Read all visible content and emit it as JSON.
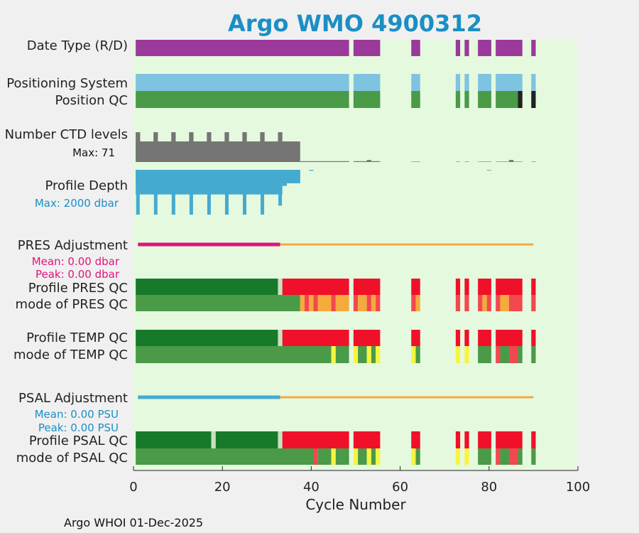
{
  "title": "Argo WMO 4900312",
  "footer": "Argo WHOI 01-Dec-2025",
  "colors": {
    "title": "#1a8fc4",
    "plot_bg": "#e5f9df",
    "purple": "#9b3a9b",
    "lightblue": "#7ec4e0",
    "green": "#4a9a48",
    "darkgreen": "#167a2a",
    "red": "#f0102a",
    "orange": "#f5aa3c",
    "lightred": "#f24850",
    "yellow": "#f5f542",
    "black": "#222222",
    "gray": "#757575",
    "profile_blue": "#45aad0",
    "magenta": "#e0147a",
    "pale": "#c8e0c0"
  },
  "chart_data": {
    "type": "heatmap",
    "title": "Argo WMO 4900312",
    "xlabel": "Cycle Number",
    "xlim": [
      0,
      100
    ],
    "xticks": [
      0,
      20,
      40,
      60,
      80,
      100
    ],
    "row_labels": {
      "date_type": "Date Type (R/D)",
      "positioning_system": "Positioning System",
      "position_qc": "Position QC",
      "number_ctd_levels": "Number CTD levels",
      "profile_depth": "Profile Depth",
      "pres_adjustment": "PRES Adjustment",
      "profile_pres_qc": "Profile PRES QC",
      "mode_pres_qc": "mode of PRES QC",
      "profile_temp_qc": "Profile TEMP QC",
      "mode_temp_qc": "mode of TEMP QC",
      "psal_adjustment": "PSAL Adjustment",
      "profile_psal_qc": "Profile PSAL QC",
      "mode_psal_qc": "mode of PSAL QC"
    },
    "annotations": {
      "ctd_max": "Max: 71",
      "depth_max": "Max: 2000 dbar",
      "pres_mean": "Mean: 0.00 dbar",
      "pres_peak": "Peak: 0.00 dbar",
      "psal_mean": "Mean: 0.00 PSU",
      "psal_peak": "Peak: 0.00 PSU"
    },
    "bar_rows": {
      "date_type": [
        [
          0.5,
          48.5,
          "purple"
        ],
        [
          49.5,
          55.5,
          "purple"
        ],
        [
          62.5,
          64.5,
          "purple"
        ],
        [
          72.5,
          73.5,
          "purple"
        ],
        [
          74.5,
          75.5,
          "purple"
        ],
        [
          77.5,
          80.5,
          "purple"
        ],
        [
          81.5,
          87.5,
          "purple"
        ],
        [
          89.5,
          90.5,
          "purple"
        ]
      ],
      "positioning_system": [
        [
          0.5,
          48.5,
          "lightblue"
        ],
        [
          49.5,
          55.5,
          "lightblue"
        ],
        [
          62.5,
          64.5,
          "lightblue"
        ],
        [
          72.5,
          73.5,
          "lightblue"
        ],
        [
          74.5,
          75.5,
          "lightblue"
        ],
        [
          77.5,
          80.5,
          "lightblue"
        ],
        [
          81.5,
          87.5,
          "lightblue"
        ],
        [
          89.5,
          90.5,
          "lightblue"
        ]
      ],
      "position_qc": [
        [
          0.5,
          48.5,
          "green"
        ],
        [
          49.5,
          55.5,
          "green"
        ],
        [
          62.5,
          64.5,
          "green"
        ],
        [
          72.5,
          73.5,
          "green"
        ],
        [
          74.5,
          75.5,
          "green"
        ],
        [
          77.5,
          80.5,
          "green"
        ],
        [
          81.5,
          86.5,
          "green"
        ],
        [
          86.5,
          87.5,
          "black"
        ],
        [
          89.5,
          90.5,
          "black"
        ]
      ],
      "profile_pres_qc": [
        [
          0.5,
          32.5,
          "darkgreen"
        ],
        [
          32.5,
          33.5,
          "pale"
        ],
        [
          33.5,
          48.5,
          "red"
        ],
        [
          49.5,
          55.5,
          "red"
        ],
        [
          62.5,
          64.5,
          "red"
        ],
        [
          72.5,
          73.5,
          "red"
        ],
        [
          74.5,
          75.5,
          "red"
        ],
        [
          77.5,
          80.5,
          "red"
        ],
        [
          81.5,
          87.5,
          "red"
        ],
        [
          89.5,
          90.5,
          "red"
        ]
      ],
      "mode_pres_qc": [
        [
          0.5,
          37.5,
          "green"
        ],
        [
          37.5,
          38.5,
          "orange"
        ],
        [
          38.5,
          39.5,
          "lightred"
        ],
        [
          39.5,
          40.5,
          "orange"
        ],
        [
          40.5,
          41.5,
          "lightred"
        ],
        [
          41.5,
          44.5,
          "orange"
        ],
        [
          44.5,
          45.5,
          "lightred"
        ],
        [
          45.5,
          48.5,
          "orange"
        ],
        [
          49.5,
          50.5,
          "lightred"
        ],
        [
          50.5,
          52.5,
          "orange"
        ],
        [
          52.5,
          53.5,
          "lightred"
        ],
        [
          53.5,
          54.5,
          "orange"
        ],
        [
          54.5,
          55.5,
          "lightred"
        ],
        [
          62.5,
          63.5,
          "lightred"
        ],
        [
          63.5,
          64.5,
          "orange"
        ],
        [
          72.5,
          73.5,
          "lightred"
        ],
        [
          74.5,
          75.5,
          "lightred"
        ],
        [
          77.5,
          78.5,
          "lightred"
        ],
        [
          78.5,
          79.5,
          "orange"
        ],
        [
          79.5,
          80.5,
          "lightred"
        ],
        [
          81.5,
          82.5,
          "lightred"
        ],
        [
          82.5,
          84.5,
          "orange"
        ],
        [
          84.5,
          87.5,
          "lightred"
        ],
        [
          89.5,
          90.5,
          "lightred"
        ]
      ],
      "profile_temp_qc": [
        [
          0.5,
          32.5,
          "darkgreen"
        ],
        [
          32.5,
          33.5,
          "pale"
        ],
        [
          33.5,
          48.5,
          "red"
        ],
        [
          49.5,
          55.5,
          "red"
        ],
        [
          62.5,
          64.5,
          "red"
        ],
        [
          72.5,
          73.5,
          "red"
        ],
        [
          74.5,
          75.5,
          "red"
        ],
        [
          77.5,
          80.5,
          "red"
        ],
        [
          81.5,
          87.5,
          "red"
        ],
        [
          89.5,
          90.5,
          "red"
        ]
      ],
      "mode_temp_qc": [
        [
          0.5,
          44.5,
          "green"
        ],
        [
          44.5,
          45.5,
          "yellow"
        ],
        [
          45.5,
          48.5,
          "green"
        ],
        [
          49.5,
          50.5,
          "yellow"
        ],
        [
          50.5,
          52.5,
          "green"
        ],
        [
          52.5,
          53.5,
          "yellow"
        ],
        [
          53.5,
          54.5,
          "green"
        ],
        [
          54.5,
          55.5,
          "yellow"
        ],
        [
          62.5,
          63.5,
          "yellow"
        ],
        [
          63.5,
          64.5,
          "green"
        ],
        [
          72.5,
          73.5,
          "yellow"
        ],
        [
          74.5,
          75.5,
          "yellow"
        ],
        [
          77.5,
          80.5,
          "green"
        ],
        [
          81.5,
          82.5,
          "lightred"
        ],
        [
          82.5,
          84.5,
          "green"
        ],
        [
          84.5,
          86.5,
          "lightred"
        ],
        [
          86.5,
          87.5,
          "green"
        ],
        [
          89.5,
          90.5,
          "green"
        ]
      ],
      "profile_psal_qc": [
        [
          0.5,
          17.5,
          "darkgreen"
        ],
        [
          17.5,
          18.5,
          "pale"
        ],
        [
          18.5,
          32.5,
          "darkgreen"
        ],
        [
          32.5,
          33.5,
          "pale"
        ],
        [
          33.5,
          48.5,
          "red"
        ],
        [
          49.5,
          55.5,
          "red"
        ],
        [
          62.5,
          64.5,
          "red"
        ],
        [
          72.5,
          73.5,
          "red"
        ],
        [
          74.5,
          75.5,
          "red"
        ],
        [
          77.5,
          80.5,
          "red"
        ],
        [
          81.5,
          87.5,
          "red"
        ],
        [
          89.5,
          90.5,
          "red"
        ]
      ],
      "mode_psal_qc": [
        [
          0.5,
          40.5,
          "green"
        ],
        [
          40.5,
          41.5,
          "lightred"
        ],
        [
          41.5,
          44.5,
          "green"
        ],
        [
          44.5,
          45.5,
          "yellow"
        ],
        [
          45.5,
          48.5,
          "green"
        ],
        [
          49.5,
          50.5,
          "yellow"
        ],
        [
          50.5,
          52.5,
          "green"
        ],
        [
          52.5,
          53.5,
          "yellow"
        ],
        [
          53.5,
          54.5,
          "green"
        ],
        [
          54.5,
          55.5,
          "yellow"
        ],
        [
          62.5,
          63.5,
          "yellow"
        ],
        [
          63.5,
          64.5,
          "green"
        ],
        [
          72.5,
          73.5,
          "yellow"
        ],
        [
          74.5,
          75.5,
          "yellow"
        ],
        [
          77.5,
          80.5,
          "green"
        ],
        [
          81.5,
          82.5,
          "lightred"
        ],
        [
          82.5,
          84.5,
          "green"
        ],
        [
          84.5,
          86.5,
          "lightred"
        ],
        [
          86.5,
          87.5,
          "green"
        ],
        [
          89.5,
          90.5,
          "green"
        ]
      ]
    },
    "ctd_levels": {
      "max": 71,
      "spans": [
        [
          0.5,
          37.5,
          49
        ],
        [
          37.5,
          48.5,
          2
        ],
        [
          49.5,
          52.5,
          2
        ],
        [
          52.5,
          53.5,
          5
        ],
        [
          53.5,
          55.5,
          2
        ],
        [
          62.5,
          64.5,
          1
        ],
        [
          72.5,
          73.5,
          1
        ],
        [
          74.5,
          75.5,
          1
        ],
        [
          77.5,
          80.5,
          1
        ],
        [
          81.5,
          84.5,
          1
        ],
        [
          84.5,
          85.5,
          5
        ],
        [
          85.5,
          87.5,
          1
        ],
        [
          89.5,
          90.5,
          1
        ]
      ],
      "spikes": [
        1,
        5,
        9,
        13,
        17,
        21,
        25,
        29,
        33
      ],
      "spike_value": 71
    },
    "profile_depth": {
      "max": 2000,
      "spans": [
        [
          0.5,
          33.5,
          1100
        ],
        [
          33.5,
          34.5,
          720
        ],
        [
          34.5,
          37.5,
          530
        ],
        [
          39.5,
          40.5,
          40
        ],
        [
          79.5,
          80.5,
          30
        ]
      ],
      "spikes": [
        1,
        5,
        9,
        13,
        17,
        21,
        25,
        29,
        33
      ],
      "spike_values": [
        2000,
        2000,
        2000,
        2000,
        2000,
        2000,
        2000,
        2000,
        1600
      ],
      "cap_level": 600,
      "cap_spans": [
        [
          0.5,
          37.5
        ]
      ]
    },
    "pres_adjustment": {
      "segments": [
        [
          1,
          33,
          "magenta"
        ],
        [
          33,
          90,
          "orange"
        ]
      ]
    },
    "psal_adjustment": {
      "segments": [
        [
          1,
          33,
          "profile_blue"
        ],
        [
          33,
          90,
          "orange"
        ]
      ]
    }
  }
}
